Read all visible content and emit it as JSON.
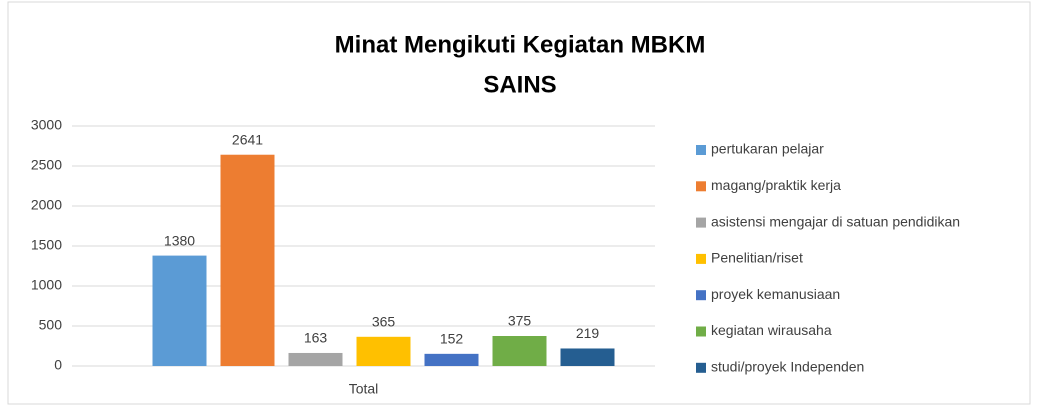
{
  "chart_data": {
    "type": "bar",
    "title": "Minat Mengikuti Kegiatan MBKM",
    "subtitle": "SAINS",
    "categories": [
      "Total"
    ],
    "series": [
      {
        "name": "pertukaran pelajar",
        "color": "#5b9bd5",
        "values": [
          1380
        ]
      },
      {
        "name": "magang/praktik kerja",
        "color": "#ed7d31",
        "values": [
          2641
        ]
      },
      {
        "name": "asistensi mengajar di satuan pendidikan",
        "color": "#a5a5a5",
        "values": [
          163
        ]
      },
      {
        "name": "Penelitian/riset",
        "color": "#ffc000",
        "values": [
          365
        ]
      },
      {
        "name": "proyek kemanusiaan",
        "color": "#4472c4",
        "values": [
          152
        ]
      },
      {
        "name": "kegiatan wirausaha",
        "color": "#70ad47",
        "values": [
          375
        ]
      },
      {
        "name": "studi/proyek Independen",
        "color": "#255e91",
        "values": [
          219
        ]
      }
    ],
    "ylim": [
      0,
      3000
    ],
    "yticks": [
      0,
      500,
      1000,
      1500,
      2000,
      2500,
      3000
    ],
    "grid": true,
    "legend": "right"
  }
}
